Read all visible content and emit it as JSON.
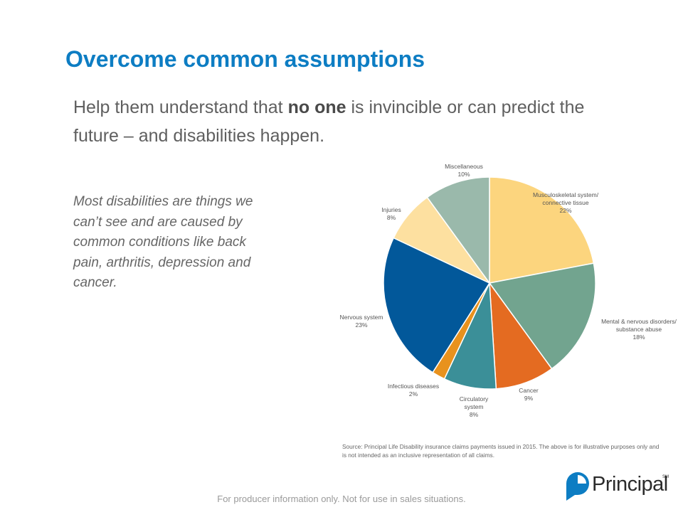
{
  "slide": {
    "title": "Overcome common assumptions",
    "subtitle_pre": "Help them understand that ",
    "subtitle_bold": "no one",
    "subtitle_post": " is invincible or can predict the future – and disabilities happen.",
    "body": "Most disabilities are things we can’t see and are caused by common conditions like back pain, arthritis, depression and cancer.",
    "source": "Source: Principal Life Disability insurance claims payments issued in 2015. The above is for illustrative purposes only and is not intended as an inclusive representation of all claims.",
    "footer": "For producer information only.  Not for use in sales situations.",
    "logo_text": "Principal",
    "logo_mark": "SM"
  },
  "chart_data": {
    "type": "pie",
    "title": "",
    "categories": [
      "Musculoskeletal system/ connective tissue",
      "Mental & nervous disorders/ substance abuse",
      "Cancer",
      "Circulatory system",
      "Infectious diseases",
      "Nervous system",
      "Injuries",
      "Miscellaneous"
    ],
    "values": [
      22,
      18,
      9,
      8,
      2,
      23,
      8,
      10
    ],
    "value_labels": [
      "22%",
      "18%",
      "9%",
      "8%",
      "2%",
      "23%",
      "8%",
      "10%"
    ],
    "colors": [
      "#fcd57e",
      "#72a48f",
      "#e46b21",
      "#3b8f98",
      "#e8921e",
      "#02589a",
      "#fde0a0",
      "#9ab9ab"
    ],
    "slice_labels": [
      [
        "Musculoskeletal system/",
        "connective tissue",
        "22%"
      ],
      [
        "Mental & nervous disorders/",
        "substance abuse",
        "18%"
      ],
      [
        "Cancer",
        "9%"
      ],
      [
        "Circulatory",
        "system",
        "8%"
      ],
      [
        "Infectious diseases",
        "2%"
      ],
      [
        "Nervous system",
        "23%"
      ],
      [
        "Injuries",
        "8%"
      ],
      [
        "Miscellaneous",
        "10%"
      ]
    ]
  }
}
